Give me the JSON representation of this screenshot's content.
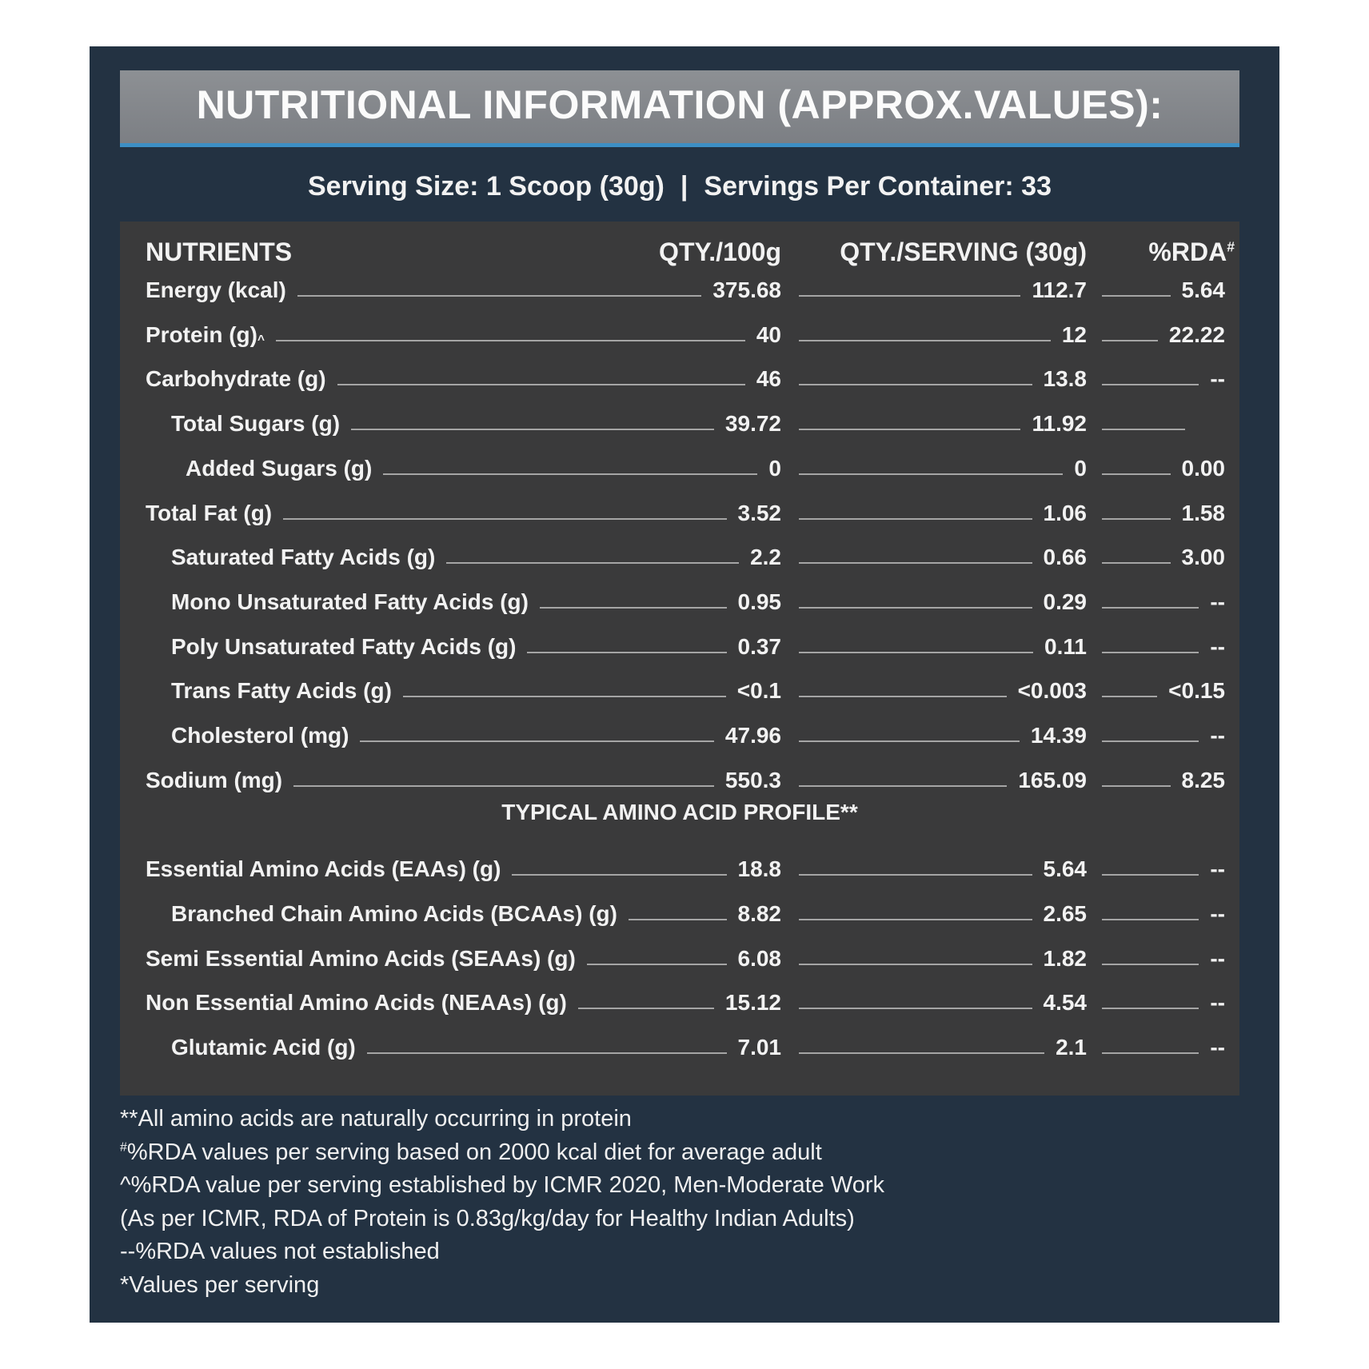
{
  "header": {
    "title": "NUTRITIONAL INFORMATION (APPROX.VALUES):",
    "serving_size": "Serving Size: 1 Scoop (30g)",
    "separator": "|",
    "servings_per_container": "Servings Per Container: 33"
  },
  "table": {
    "columns": [
      "NUTRIENTS",
      "QTY./100g",
      "QTY./SERVING (30g)",
      {
        "text": "%RDA",
        "sup": "#"
      }
    ],
    "rows": [
      {
        "label": "Energy (kcal)",
        "per_100g": "375.68",
        "per_serving": "112.7",
        "rda": "5.64"
      },
      {
        "label": "Protein (g)",
        "sup": "^",
        "per_100g": "40",
        "per_serving": "12",
        "rda": "22.22"
      },
      {
        "label": "Carbohydrate (g)",
        "per_100g": "46",
        "per_serving": "13.8",
        "rda": "--"
      },
      {
        "label": "Total Sugars (g)",
        "per_100g": "39.72",
        "per_serving": "11.92",
        "rda": null
      },
      {
        "label": "Added Sugars (g)",
        "per_100g": "0",
        "per_serving": "0",
        "rda": "0.00"
      },
      {
        "label": "Total Fat (g)",
        "per_100g": "3.52",
        "per_serving": "1.06",
        "rda": "1.58"
      },
      {
        "label": "Saturated Fatty Acids (g)",
        "per_100g": "2.2",
        "per_serving": "0.66",
        "rda": "3.00"
      },
      {
        "label": "Mono Unsaturated Fatty Acids (g)",
        "per_100g": "0.95",
        "per_serving": "0.29",
        "rda": "--"
      },
      {
        "label": "Poly Unsaturated Fatty Acids (g)",
        "per_100g": "0.37",
        "per_serving": "0.11",
        "rda": "--"
      },
      {
        "label": "Trans Fatty Acids (g)",
        "per_100g": "<0.1",
        "per_serving": "<0.003",
        "rda": "<0.15"
      },
      {
        "label": "Cholesterol (mg)",
        "per_100g": "47.96",
        "per_serving": "14.39",
        "rda": "--"
      },
      {
        "label": "Sodium (mg)",
        "per_100g": "550.3",
        "per_serving": "165.09",
        "rda": "8.25"
      }
    ],
    "amino_heading": "TYPICAL AMINO ACID PROFILE**",
    "amino_rows": [
      {
        "label": "Essential Amino Acids (EAAs) (g)",
        "per_100g": "18.8",
        "per_serving": "5.64",
        "rda": "--"
      },
      {
        "label": "Branched Chain Amino Acids (BCAAs) (g)",
        "per_100g": "8.82",
        "per_serving": "2.65",
        "rda": "--"
      },
      {
        "label": "Semi Essential Amino Acids (SEAAs) (g)",
        "per_100g": "6.08",
        "per_serving": "1.82",
        "rda": "--"
      },
      {
        "label": "Non Essential Amino Acids (NEAAs) (g)",
        "per_100g": "15.12",
        "per_serving": "4.54",
        "rda": "--"
      },
      {
        "label": "Glutamic Acid (g)",
        "per_100g": "7.01",
        "per_serving": "2.1",
        "rda": "--"
      }
    ]
  },
  "footnotes": [
    {
      "text": "**All amino acids are naturally occurring in protein"
    },
    {
      "sup": "#",
      "text": "%RDA values per serving based on 2000 kcal diet for average adult"
    },
    {
      "text": "^%RDA value per serving established by ICMR 2020, Men-Moderate Work"
    },
    {
      "text": "(As per ICMR, RDA of Protein is 0.83g/kg/day for Healthy Indian Adults)"
    },
    {
      "text": "--%RDA values not established"
    },
    {
      "text": "*Values per serving"
    }
  ]
}
